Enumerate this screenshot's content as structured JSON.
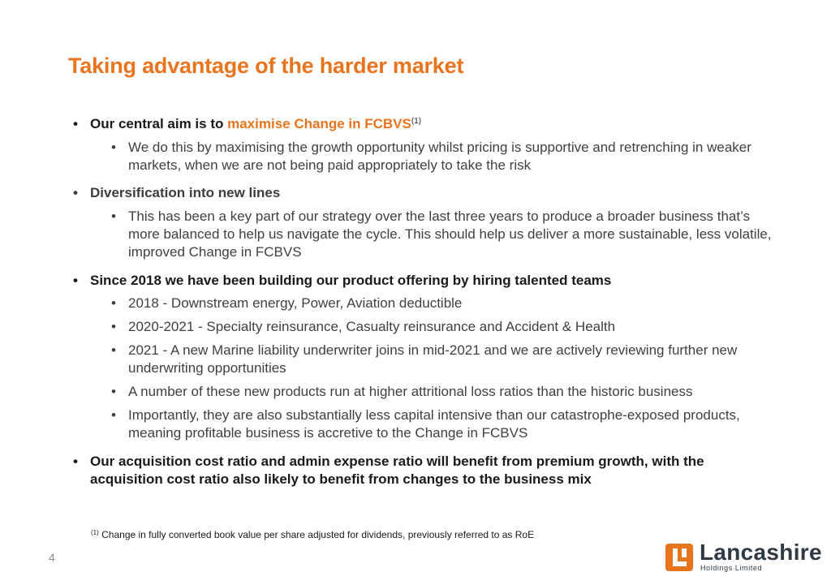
{
  "slide": {
    "title": "Taking advantage of the harder market",
    "bullets": [
      {
        "text_prefix": "Our central aim is to ",
        "text_accent": "maximise Change in FCBVS",
        "ref": "(1)",
        "subs": [
          "We do this by maximising the growth opportunity whilst pricing is supportive and retrenching in weaker markets, when we are not being paid appropriately to take the risk"
        ]
      },
      {
        "text": "Diversification into new lines",
        "subs": [
          "This has been a key part of our strategy over the last three years to produce a broader business that’s more balanced to help us navigate the cycle. This should help us deliver a more sustainable, less volatile, improved Change in FCBVS"
        ]
      },
      {
        "text": "Since 2018 we have been building our product offering by hiring talented teams",
        "subs": [
          "2018 - Downstream energy, Power, Aviation deductible",
          "2020-2021 - Specialty reinsurance, Casualty reinsurance and Accident & Health",
          "2021 - A new Marine liability underwriter joins in mid-2021 and we are actively reviewing further new underwriting opportunities",
          "A number of these new products run at higher attritional loss ratios than the historic business",
          "Importantly, they are also substantially less capital intensive than our catastrophe-exposed products, meaning profitable business is accretive to the Change in FCBVS"
        ]
      },
      {
        "text": "Our acquisition cost ratio and admin expense ratio will benefit from premium growth, with the acquisition cost ratio also likely to benefit from changes to the business mix",
        "subs": []
      }
    ],
    "footnote": {
      "ref": "(1)",
      "text": "Change in fully converted book value per share adjusted for dividends, previously referred to as RoE"
    },
    "page_number": "4",
    "logo": {
      "name": "Lancashire",
      "subtitle": "Holdings Limited",
      "brand_color": "#E8741E",
      "text_color": "#2f3a45"
    },
    "bullet_symbol": "•"
  }
}
